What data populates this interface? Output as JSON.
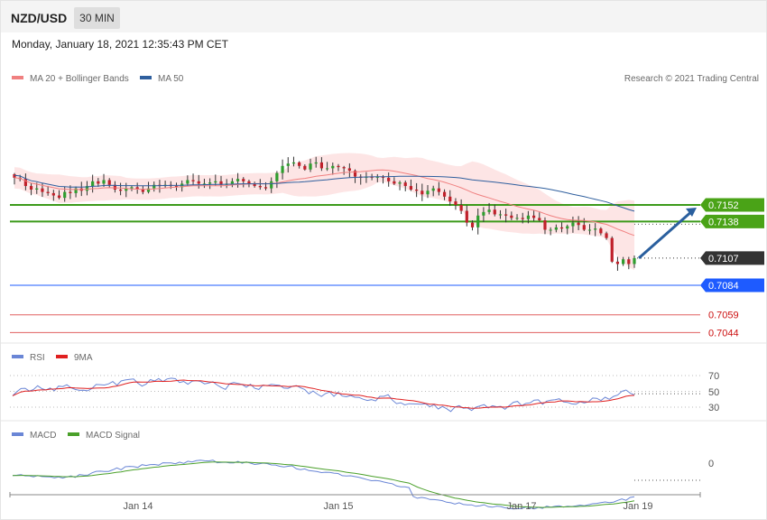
{
  "header": {
    "symbol": "NZD/USD",
    "timeframe": "30 MIN",
    "datetime": "Monday, January 18, 2021 12:35:43 PM CET"
  },
  "legend": {
    "ma20": {
      "label": "MA 20 + Bollinger Bands",
      "color": "#f08080"
    },
    "ma50": {
      "label": "MA 50",
      "color": "#2f5f9e"
    },
    "copyright": "Research © 2021 Trading Central"
  },
  "colors": {
    "up": "#2f9e2f",
    "down": "#c0202a",
    "band": "#fde0e0",
    "support": "#1e5bff",
    "resistance": "#3c9a1a",
    "current": "#333333",
    "lowlevel": "#e06060",
    "arrow": "#2a5f9e",
    "rsi": "#6a86d6",
    "rsi_ma": "#e02020",
    "macd": "#6a86d6",
    "macd_signal": "#4aa02a"
  },
  "chart_data": [
    {
      "type": "candlestick",
      "title": "NZD/USD 30 MIN",
      "x_ticks": [
        "Jan 14",
        "Jan 15",
        "Jan 17",
        "Jan 19"
      ],
      "ylim": [
        7.03,
        7.188
      ],
      "y_scale_note": "price x 100 internal",
      "levels": [
        {
          "value": 0.7152,
          "label": "0.7152",
          "kind": "resistance"
        },
        {
          "value": 0.7138,
          "label": "0.7138",
          "kind": "resistance"
        },
        {
          "value": 0.7107,
          "label": "0.7107",
          "kind": "current"
        },
        {
          "value": 0.7084,
          "label": "0.7084",
          "kind": "support"
        },
        {
          "value": 0.7059,
          "label": "0.7059",
          "kind": "lowlevel"
        },
        {
          "value": 0.7044,
          "label": "0.7044",
          "kind": "lowlevel"
        }
      ],
      "close_series": [
        0.7175,
        0.7174,
        0.7168,
        0.7165,
        0.7166,
        0.7163,
        0.7162,
        0.716,
        0.7158,
        0.7163,
        0.7162,
        0.7166,
        0.7164,
        0.7168,
        0.7172,
        0.717,
        0.7173,
        0.7169,
        0.7165,
        0.7164,
        0.7166,
        0.7167,
        0.7165,
        0.7163,
        0.7166,
        0.7169,
        0.7168,
        0.7169,
        0.7168,
        0.7167,
        0.717,
        0.7173,
        0.7172,
        0.717,
        0.717,
        0.7171,
        0.7172,
        0.7169,
        0.717,
        0.7172,
        0.7174,
        0.7172,
        0.717,
        0.7168,
        0.7167,
        0.7166,
        0.7172,
        0.7179,
        0.7185,
        0.7187,
        0.7188,
        0.7185,
        0.7182,
        0.7187,
        0.7188,
        0.7183,
        0.7183,
        0.7185,
        0.7184,
        0.7183,
        0.7181,
        0.7176,
        0.7175,
        0.7176,
        0.7175,
        0.7176,
        0.7175,
        0.7172,
        0.717,
        0.7171,
        0.7168,
        0.7165,
        0.7164,
        0.7161,
        0.7164,
        0.7166,
        0.7163,
        0.7159,
        0.7155,
        0.7152,
        0.7147,
        0.7137,
        0.7133,
        0.7143,
        0.7146,
        0.7148,
        0.7144,
        0.7144,
        0.7143,
        0.7141,
        0.7141,
        0.714,
        0.7143,
        0.7141,
        0.7139,
        0.7131,
        0.7131,
        0.7133,
        0.7132,
        0.7134,
        0.7137,
        0.7135,
        0.7131,
        0.7131,
        0.7132,
        0.7128,
        0.7124,
        0.7104,
        0.7102,
        0.7106,
        0.7102,
        0.7107
      ],
      "bands": {
        "upper_max": 0.7196,
        "lower_min": 0.7105
      },
      "forecast": {
        "from": 0.7107,
        "to": 0.7152
      }
    },
    {
      "type": "line",
      "title": "RSI",
      "series": [
        {
          "name": "RSI"
        },
        {
          "name": "9MA"
        }
      ],
      "y_ticks": [
        "70",
        "50",
        "30"
      ],
      "ylim": [
        20,
        80
      ]
    },
    {
      "type": "line",
      "title": "MACD",
      "series": [
        {
          "name": "MACD"
        },
        {
          "name": "MACD Signal"
        }
      ],
      "y_ticks": [
        "0"
      ]
    }
  ]
}
